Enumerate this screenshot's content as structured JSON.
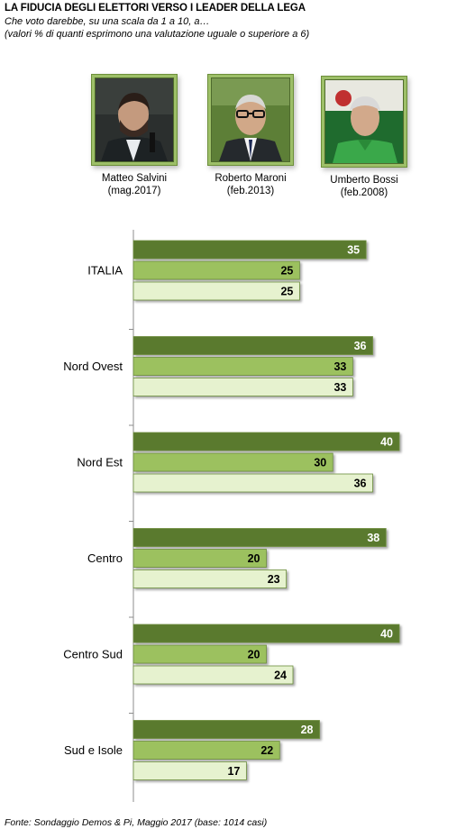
{
  "header": {
    "title": "LA FIDUCIA DEGLI ELETTORI VERSO I LEADER DELLA LEGA",
    "subtitle": "Che voto darebbe, su una scala da 1 a 10, a…",
    "note": "(valori % di quanti esprimono una valutazione uguale o superiore a 6)"
  },
  "leaders": [
    {
      "name": "Matteo Salvini",
      "date": "(mag.2017)"
    },
    {
      "name": "Roberto Maroni",
      "date": "(feb.2013)"
    },
    {
      "name": "Umberto Bossi",
      "date": "(feb.2008)"
    }
  ],
  "colors": {
    "salvini": "#5a7a2e",
    "maroni": "#9cc15f",
    "bossi": "#e6f2cf",
    "bar_border": "#6b8c3b"
  },
  "chart_data": {
    "type": "bar",
    "orientation": "horizontal",
    "categories": [
      "ITALIA",
      "Nord Ovest",
      "Nord Est",
      "Centro",
      "Centro Sud",
      "Sud e Isole"
    ],
    "series": [
      {
        "name": "Matteo Salvini",
        "values": [
          35,
          36,
          40,
          38,
          40,
          28
        ]
      },
      {
        "name": "Roberto Maroni",
        "values": [
          25,
          33,
          30,
          20,
          20,
          22
        ]
      },
      {
        "name": "Umberto Bossi",
        "values": [
          25,
          33,
          36,
          23,
          24,
          17
        ]
      }
    ],
    "xlim": [
      0,
      40
    ],
    "grid": false,
    "data_labels": true
  },
  "footer": {
    "source": "Fonte: Sondaggio Demos & Pi, Maggio 2017 (base: 1014 casi)"
  }
}
